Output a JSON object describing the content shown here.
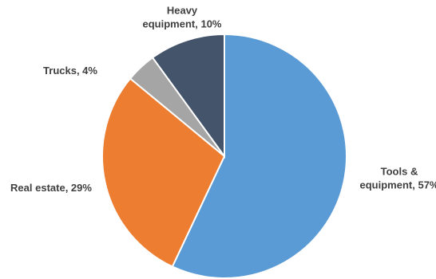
{
  "chart_data": {
    "type": "pie",
    "title": "",
    "legend": "none",
    "start_angle_deg": 0,
    "direction": "clockwise",
    "slices": [
      {
        "label_lines": [
          "Tools &",
          "equipment, 57%"
        ],
        "value": 57,
        "color": "#5B9BD5"
      },
      {
        "label_lines": [
          "Real estate, 29%"
        ],
        "value": 29,
        "color": "#ED7D31"
      },
      {
        "label_lines": [
          "Trucks, 4%"
        ],
        "value": 4,
        "color": "#A5A5A5"
      },
      {
        "label_lines": [
          "Heavy",
          "equipment, 10%"
        ],
        "value": 10,
        "color": "#44546A"
      }
    ]
  }
}
